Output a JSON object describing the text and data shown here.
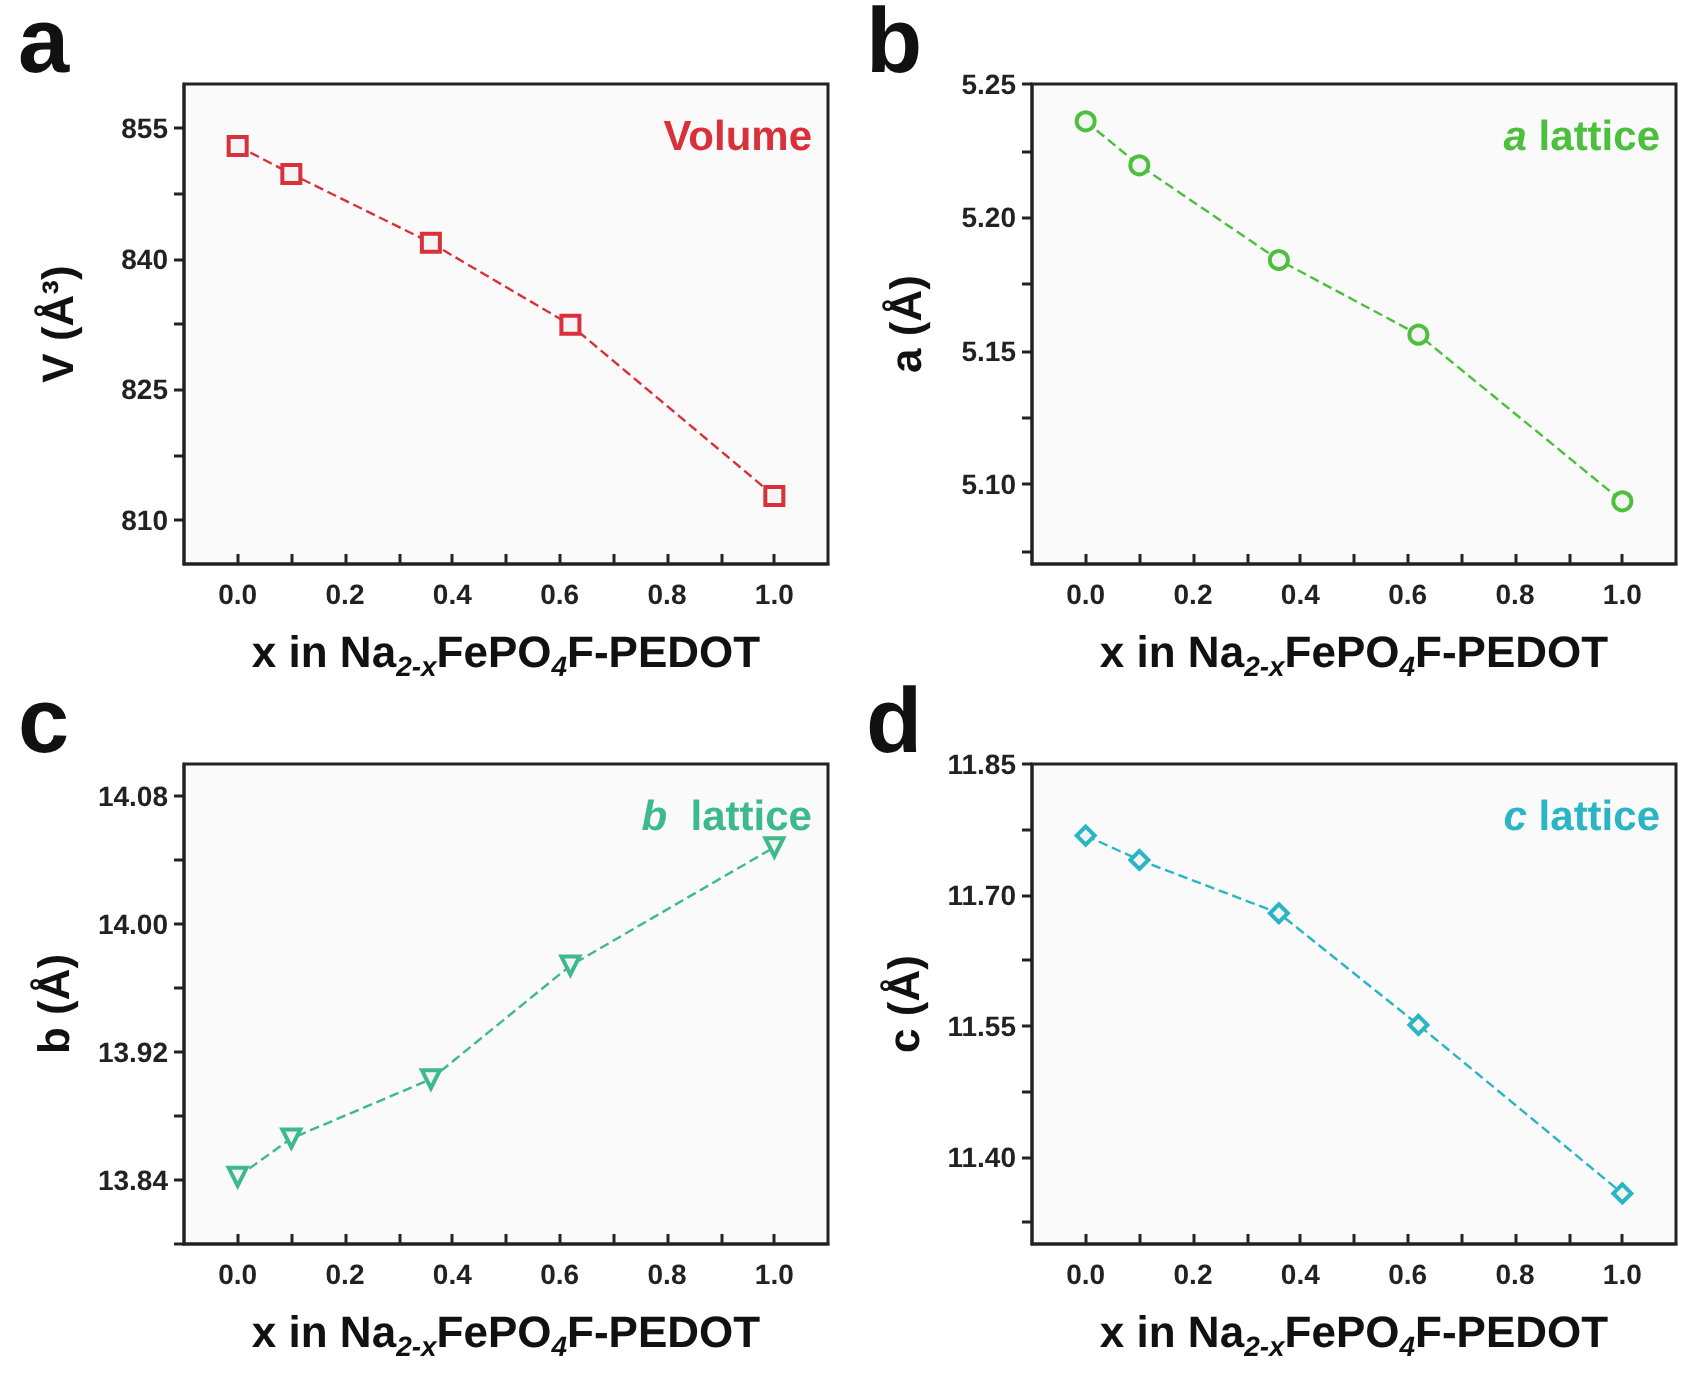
{
  "chart_data": [
    {
      "type": "line",
      "title": "a",
      "xlabel": "x in Na$_{2-x}$FePO$_{4}$F-PEDOT",
      "ylabel": "V (Å³)",
      "annotations": [
        "Volume"
      ],
      "x": [
        0,
        0.1,
        0.36,
        0.62,
        1.0
      ],
      "series": [
        {
          "color": "#d9313b",
          "values": [
            852.9,
            849.7,
            841.8,
            832.4,
            812.8
          ]
        }
      ],
      "xlim": [
        -0.1,
        1.1
      ],
      "xticks": [
        {
          "value": 0,
          "label": "0.0"
        },
        {
          "value": 0.1,
          "label": null
        },
        {
          "value": 0.2,
          "label": "0.2"
        },
        {
          "value": 0.3,
          "label": null
        },
        {
          "value": 0.4,
          "label": "0.4"
        },
        {
          "value": 0.5,
          "label": null
        },
        {
          "value": 0.6,
          "label": "0.6"
        },
        {
          "value": 0.7,
          "label": null
        },
        {
          "value": 0.8,
          "label": "0.8"
        },
        {
          "value": 0.9,
          "label": null
        },
        {
          "value": 1,
          "label": "1.0"
        }
      ],
      "ylim": [
        805,
        860
      ],
      "yticks": [
        810,
        {
          "value": 817.5,
          "label": null
        },
        825,
        {
          "value": 832.5,
          "label": null
        },
        840,
        {
          "value": 847.5,
          "label": null
        },
        855
      ],
      "marker": "square",
      "line_style": "dashed",
      "grid": false
    },
    {
      "type": "line",
      "title": "b",
      "xlabel": "x in Na$_{2-x}$FePO$_{4}$F-PEDOT",
      "ylabel": "a (Å)",
      "annotations": [
        "a lattice"
      ],
      "x": [
        0,
        0.1,
        0.36,
        0.62,
        1.0
      ],
      "series": [
        {
          "color": "#4cbf3c",
          "values": [
            5.236,
            5.2195,
            5.184,
            5.156,
            5.0935
          ]
        }
      ],
      "xlim": [
        -0.1,
        1.1
      ],
      "xticks": [
        {
          "value": 0,
          "label": "0.0"
        },
        {
          "value": 0.1,
          "label": null
        },
        {
          "value": 0.2,
          "label": "0.2"
        },
        {
          "value": 0.3,
          "label": null
        },
        {
          "value": 0.4,
          "label": "0.4"
        },
        {
          "value": 0.5,
          "label": null
        },
        {
          "value": 0.6,
          "label": "0.6"
        },
        {
          "value": 0.7,
          "label": null
        },
        {
          "value": 0.8,
          "label": "0.8"
        },
        {
          "value": 0.9,
          "label": null
        },
        {
          "value": 1,
          "label": "1.0"
        }
      ],
      "ylim": [
        5.07,
        5.25
      ],
      "yticks": [
        {
          "value": 5.075,
          "label": null
        },
        {
          "value": 5.1,
          "label": "5.10"
        },
        {
          "value": 5.125,
          "label": null
        },
        {
          "value": 5.15,
          "label": "5.15"
        },
        {
          "value": 5.175,
          "label": null
        },
        {
          "value": 5.2,
          "label": "5.20"
        },
        {
          "value": 5.225,
          "label": null
        },
        5.25
      ],
      "marker": "circle",
      "line_style": "dashed",
      "grid": false
    },
    {
      "type": "line",
      "title": "c",
      "xlabel": "x in Na$_{2-x}$FePO$_{4}$F-PEDOT",
      "ylabel": "b (Å)",
      "annotations": [
        "b  lattice"
      ],
      "x": [
        0,
        0.1,
        0.36,
        0.62,
        1.0
      ],
      "series": [
        {
          "color": "#3dba8b",
          "values": [
            13.842,
            13.866,
            13.903,
            13.974,
            14.048
          ]
        }
      ],
      "xlim": [
        -0.1,
        1.1
      ],
      "xticks": [
        {
          "value": 0,
          "label": "0.0"
        },
        {
          "value": 0.1,
          "label": null
        },
        {
          "value": 0.2,
          "label": "0.2"
        },
        {
          "value": 0.3,
          "label": null
        },
        {
          "value": 0.4,
          "label": "0.4"
        },
        {
          "value": 0.5,
          "label": null
        },
        {
          "value": 0.6,
          "label": "0.6"
        },
        {
          "value": 0.7,
          "label": null
        },
        {
          "value": 0.8,
          "label": "0.8"
        },
        {
          "value": 0.9,
          "label": null
        },
        {
          "value": 1,
          "label": "1.0"
        }
      ],
      "ylim": [
        13.8,
        14.1
      ],
      "yticks": [
        {
          "value": 13.8,
          "label": null
        },
        13.84,
        {
          "value": 13.88,
          "label": null
        },
        13.92,
        {
          "value": 13.96,
          "label": null
        },
        {
          "value": 14.0,
          "label": "14.00"
        },
        {
          "value": 14.04,
          "label": null
        },
        14.08
      ],
      "marker": "triangle",
      "line_style": "dashed",
      "grid": false
    },
    {
      "type": "line",
      "title": "d",
      "xlabel": "x in Na$_{2-x}$FePO$_{4}$F-PEDOT",
      "ylabel": "c (Å)",
      "annotations": [
        "c lattice"
      ],
      "x": [
        0,
        0.1,
        0.36,
        0.62,
        1.0
      ],
      "series": [
        {
          "color": "#29b5c3",
          "values": [
            11.768,
            11.74,
            11.679,
            11.551,
            11.358
          ]
        }
      ],
      "xlim": [
        -0.1,
        1.1
      ],
      "xticks": [
        {
          "value": 0,
          "label": "0.0"
        },
        {
          "value": 0.1,
          "label": null
        },
        {
          "value": 0.2,
          "label": "0.2"
        },
        {
          "value": 0.3,
          "label": null
        },
        {
          "value": 0.4,
          "label": "0.4"
        },
        {
          "value": 0.5,
          "label": null
        },
        {
          "value": 0.6,
          "label": "0.6"
        },
        {
          "value": 0.7,
          "label": null
        },
        {
          "value": 0.8,
          "label": "0.8"
        },
        {
          "value": 0.9,
          "label": null
        },
        {
          "value": 1,
          "label": "1.0"
        }
      ],
      "ylim": [
        11.3,
        11.85
      ],
      "yticks": [
        {
          "value": 11.325,
          "label": null
        },
        {
          "value": 11.4,
          "label": "11.40"
        },
        {
          "value": 11.475,
          "label": null
        },
        {
          "value": 11.55,
          "label": "11.55"
        },
        {
          "value": 11.625,
          "label": null
        },
        {
          "value": 11.7,
          "label": "11.70"
        },
        {
          "value": 11.775,
          "label": null
        },
        11.85
      ],
      "marker": "diamond",
      "line_style": "dashed",
      "grid": false
    }
  ]
}
